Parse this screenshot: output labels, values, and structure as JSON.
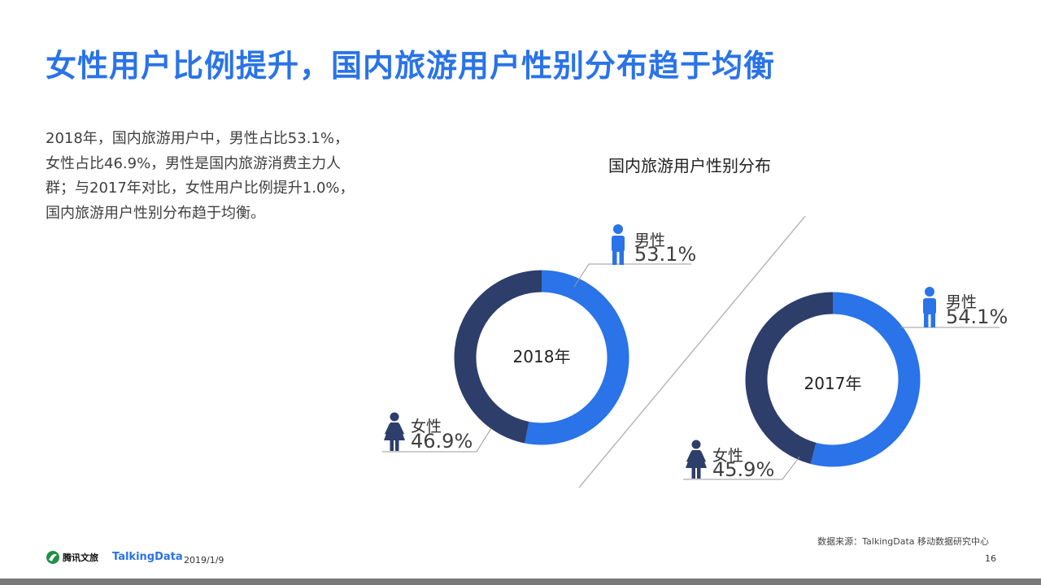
{
  "title": "女性用户比例提升，国内旅游用户性别分布趋于均衡",
  "description": "2018年，国内旅游用户中，男性占比53.1%，女性占比46.9%，男性是国内旅游消费主力人群；与2017年对比，女性用户比例提升1.0%，国内旅游用户性别分布趋于均衡。",
  "colors": {
    "male": "#2a73e8",
    "female": "#2d3e6b",
    "title": "#2a73e8"
  },
  "chart_data": {
    "type": "pie",
    "title": "国内旅游用户性别分布",
    "charts": [
      {
        "center_label": "2018年",
        "slices": [
          {
            "name": "男性",
            "value": 53.1,
            "label": "53.1%",
            "color": "#2a73e8",
            "icon": "male-icon"
          },
          {
            "name": "女性",
            "value": 46.9,
            "label": "46.9%",
            "color": "#2d3e6b",
            "icon": "female-icon"
          }
        ]
      },
      {
        "center_label": "2017年",
        "slices": [
          {
            "name": "男性",
            "value": 54.1,
            "label": "54.1%",
            "color": "#2a73e8",
            "icon": "male-icon"
          },
          {
            "name": "女性",
            "value": 45.9,
            "label": "45.9%",
            "color": "#2d3e6b",
            "icon": "female-icon"
          }
        ]
      }
    ]
  },
  "footer": {
    "source": "数据来源：TalkingData  移动数据研究中心",
    "date": "2019/1/9",
    "page": "16",
    "logo_tencent": "腾讯文旅",
    "logo_talkingdata": "TalkingData"
  }
}
